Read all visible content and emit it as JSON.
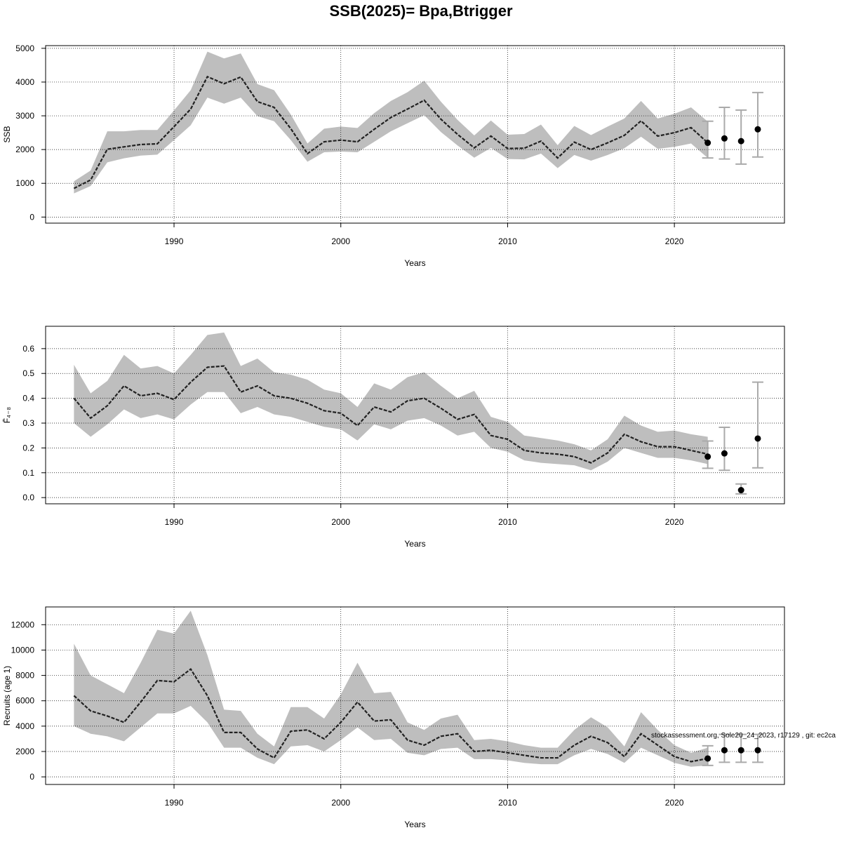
{
  "title": "SSB(2025)= Bpa,Btrigger",
  "footnote": "stockassessment.org, Sole20_24_2023, r17129 , git: ec2ca",
  "colors": {
    "band": "#bebebe",
    "line": "#222222",
    "errorbar": "#aaaaaa",
    "point": "#000000",
    "grid": "#000000"
  },
  "chart_data": [
    {
      "id": "ssb",
      "type": "line",
      "ylabel": "SSB",
      "xlabel": "Years",
      "xlim": [
        1982.3,
        2026.6
      ],
      "ylim": [
        -180,
        5080
      ],
      "xticks": [
        1990,
        2000,
        2010,
        2020
      ],
      "yticks": [
        0,
        1000,
        2000,
        3000,
        4000,
        5000
      ],
      "yticklabels": [
        "0",
        "1000",
        "2000",
        "3000",
        "4000",
        "5000"
      ],
      "grid": true,
      "series": [
        {
          "x": [
            1984,
            1985,
            1986,
            1987,
            1988,
            1989,
            1990,
            1991,
            1992,
            1993,
            1994,
            1995,
            1996,
            1997,
            1998,
            1999,
            2000,
            2001,
            2002,
            2003,
            2004,
            2005,
            2006,
            2007,
            2008,
            2009,
            2010,
            2011,
            2012,
            2013,
            2014,
            2015,
            2016,
            2017,
            2018,
            2019,
            2020,
            2021,
            2022
          ],
          "y": [
            850,
            1100,
            2010,
            2080,
            2150,
            2170,
            2680,
            3200,
            4160,
            3950,
            4150,
            3420,
            3250,
            2620,
            1880,
            2230,
            2280,
            2230,
            2600,
            2950,
            3200,
            3460,
            2900,
            2450,
            2050,
            2400,
            2030,
            2040,
            2250,
            1750,
            2220,
            2000,
            2200,
            2420,
            2850,
            2400,
            2500,
            2650,
            2200
          ],
          "lower": [
            700,
            920,
            1620,
            1740,
            1820,
            1850,
            2280,
            2720,
            3540,
            3360,
            3540,
            2990,
            2840,
            2280,
            1640,
            1920,
            1940,
            1920,
            2230,
            2540,
            2780,
            3020,
            2520,
            2120,
            1760,
            2050,
            1720,
            1710,
            1880,
            1450,
            1840,
            1670,
            1840,
            2040,
            2380,
            2020,
            2080,
            2180,
            1750
          ],
          "upper": [
            1060,
            1380,
            2540,
            2540,
            2580,
            2580,
            3160,
            3760,
            4900,
            4700,
            4850,
            3940,
            3760,
            3040,
            2180,
            2620,
            2680,
            2640,
            3080,
            3440,
            3700,
            4040,
            3420,
            2880,
            2420,
            2860,
            2440,
            2460,
            2740,
            2130,
            2700,
            2430,
            2680,
            2920,
            3440,
            2920,
            3060,
            3250,
            2830
          ]
        }
      ],
      "forecast": {
        "x": [
          2022,
          2023,
          2024,
          2025
        ],
        "y": [
          2200,
          2330,
          2250,
          2600
        ],
        "lower": [
          1750,
          1720,
          1570,
          1780
        ],
        "upper": [
          2840,
          3250,
          3170,
          3690
        ]
      }
    },
    {
      "id": "fbar",
      "type": "line",
      "ylabel": "F̄₄₋₈",
      "xlabel": "Years",
      "xlim": [
        1982.3,
        2026.6
      ],
      "ylim": [
        -0.025,
        0.69
      ],
      "xticks": [
        1990,
        2000,
        2010,
        2020
      ],
      "yticks": [
        0,
        0.1,
        0.2,
        0.3,
        0.4,
        0.5,
        0.6
      ],
      "yticklabels": [
        "0.0",
        "0.1",
        "0.2",
        "0.3",
        "0.4",
        "0.5",
        "0.6"
      ],
      "grid": true,
      "series": [
        {
          "x": [
            1984,
            1985,
            1986,
            1987,
            1988,
            1989,
            1990,
            1991,
            1992,
            1993,
            1994,
            1995,
            1996,
            1997,
            1998,
            1999,
            2000,
            2001,
            2002,
            2003,
            2004,
            2005,
            2006,
            2007,
            2008,
            2009,
            2010,
            2011,
            2012,
            2013,
            2014,
            2015,
            2016,
            2017,
            2018,
            2019,
            2020,
            2021,
            2022
          ],
          "y": [
            0.4,
            0.32,
            0.37,
            0.45,
            0.41,
            0.42,
            0.395,
            0.465,
            0.525,
            0.53,
            0.425,
            0.45,
            0.41,
            0.4,
            0.38,
            0.35,
            0.34,
            0.29,
            0.365,
            0.345,
            0.39,
            0.4,
            0.36,
            0.315,
            0.335,
            0.25,
            0.235,
            0.19,
            0.18,
            0.175,
            0.165,
            0.14,
            0.18,
            0.255,
            0.225,
            0.205,
            0.205,
            0.19,
            0.175
          ],
          "lower": [
            0.3,
            0.245,
            0.295,
            0.355,
            0.32,
            0.335,
            0.315,
            0.375,
            0.425,
            0.425,
            0.34,
            0.365,
            0.335,
            0.325,
            0.305,
            0.285,
            0.275,
            0.23,
            0.295,
            0.275,
            0.31,
            0.32,
            0.29,
            0.25,
            0.265,
            0.2,
            0.185,
            0.15,
            0.14,
            0.135,
            0.13,
            0.11,
            0.145,
            0.2,
            0.18,
            0.16,
            0.16,
            0.15,
            0.135
          ],
          "upper": [
            0.535,
            0.42,
            0.47,
            0.575,
            0.52,
            0.53,
            0.5,
            0.575,
            0.655,
            0.665,
            0.53,
            0.56,
            0.505,
            0.495,
            0.475,
            0.435,
            0.42,
            0.365,
            0.46,
            0.435,
            0.485,
            0.505,
            0.45,
            0.4,
            0.43,
            0.325,
            0.305,
            0.25,
            0.24,
            0.23,
            0.215,
            0.19,
            0.235,
            0.33,
            0.29,
            0.265,
            0.27,
            0.255,
            0.245
          ]
        }
      ],
      "forecast": {
        "x": [
          2022,
          2023,
          2024,
          2025
        ],
        "y": [
          0.165,
          0.178,
          0.03,
          0.238
        ],
        "lower": [
          0.118,
          0.11,
          0.015,
          0.12
        ],
        "upper": [
          0.228,
          0.283,
          0.055,
          0.465
        ]
      }
    },
    {
      "id": "recruits",
      "type": "line",
      "ylabel": "Recruits (age 1)",
      "xlabel": "Years",
      "xlim": [
        1982.3,
        2026.6
      ],
      "ylim": [
        -600,
        13400
      ],
      "xticks": [
        1990,
        2000,
        2010,
        2020
      ],
      "yticks": [
        0,
        2000,
        4000,
        6000,
        8000,
        10000,
        12000
      ],
      "yticklabels": [
        "0",
        "2000",
        "4000",
        "6000",
        "8000",
        "10000",
        "12000"
      ],
      "grid": true,
      "series": [
        {
          "x": [
            1984,
            1985,
            1986,
            1987,
            1988,
            1989,
            1990,
            1991,
            1992,
            1993,
            1994,
            1995,
            1996,
            1997,
            1998,
            1999,
            2000,
            2001,
            2002,
            2003,
            2004,
            2005,
            2006,
            2007,
            2008,
            2009,
            2010,
            2011,
            2012,
            2013,
            2014,
            2015,
            2016,
            2017,
            2018,
            2019,
            2020,
            2021,
            2022
          ],
          "y": [
            6400,
            5200,
            4800,
            4300,
            5900,
            7600,
            7500,
            8500,
            6400,
            3500,
            3500,
            2200,
            1500,
            3600,
            3700,
            3000,
            4300,
            5900,
            4400,
            4500,
            2900,
            2500,
            3200,
            3400,
            2000,
            2100,
            1900,
            1700,
            1500,
            1500,
            2500,
            3200,
            2700,
            1600,
            3400,
            2500,
            1600,
            1200,
            1450
          ],
          "lower": [
            4000,
            3400,
            3200,
            2800,
            3900,
            5000,
            5000,
            5600,
            4300,
            2300,
            2300,
            1500,
            1000,
            2400,
            2500,
            2000,
            2900,
            3900,
            2900,
            3000,
            1900,
            1700,
            2200,
            2300,
            1400,
            1400,
            1300,
            1100,
            1000,
            1000,
            1700,
            2200,
            1800,
            1100,
            2300,
            1700,
            1100,
            800,
            900
          ],
          "upper": [
            10500,
            8000,
            7300,
            6600,
            9000,
            11600,
            11300,
            13100,
            9600,
            5300,
            5200,
            3400,
            2400,
            5500,
            5500,
            4600,
            6500,
            9000,
            6600,
            6700,
            4300,
            3700,
            4600,
            4900,
            2900,
            3000,
            2800,
            2500,
            2300,
            2300,
            3700,
            4700,
            3900,
            2400,
            5100,
            3700,
            2500,
            1900,
            2300
          ]
        }
      ],
      "forecast": {
        "x": [
          2022,
          2023,
          2024,
          2025
        ],
        "y": [
          1450,
          2100,
          2100,
          2100
        ],
        "lower": [
          900,
          1150,
          1150,
          1150
        ],
        "upper": [
          2450,
          3350,
          3350,
          3350
        ]
      }
    }
  ]
}
